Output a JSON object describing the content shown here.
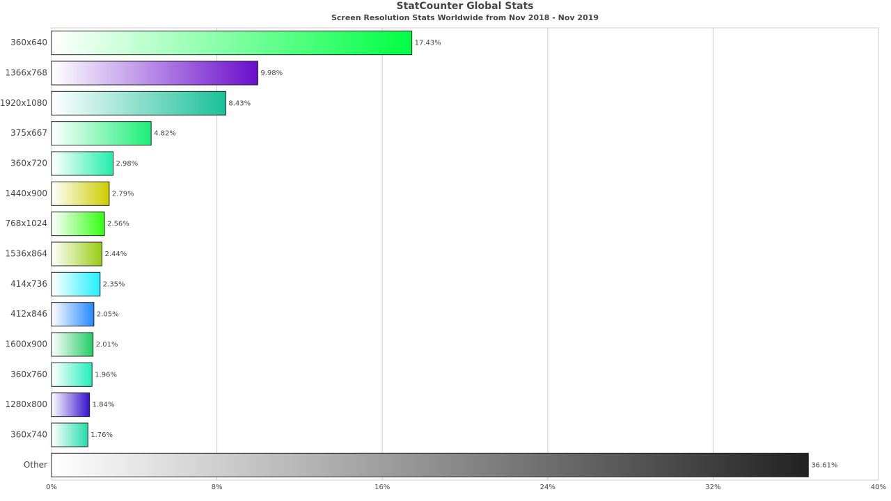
{
  "chart_data": {
    "type": "barh",
    "title": "StatCounter Global Stats",
    "subtitle": "Screen Resolution Stats Worldwide from Nov 2018 - Nov 2019",
    "categories": [
      "360x640",
      "1366x768",
      "1920x1080",
      "375x667",
      "360x720",
      "1440x900",
      "768x1024",
      "1536x864",
      "414x736",
      "412x846",
      "1600x900",
      "360x760",
      "1280x800",
      "360x740",
      "Other"
    ],
    "values": [
      17.43,
      9.98,
      8.43,
      4.82,
      2.98,
      2.79,
      2.56,
      2.44,
      2.35,
      2.05,
      2.01,
      1.96,
      1.84,
      1.76,
      36.61
    ],
    "value_labels": [
      "17.43%",
      "9.98%",
      "8.43%",
      "4.82%",
      "2.98%",
      "2.79%",
      "2.56%",
      "2.44%",
      "2.35%",
      "2.05%",
      "2.01%",
      "1.96%",
      "1.84%",
      "1.76%",
      "36.61%"
    ],
    "colors": [
      "#00ff44",
      "#6a0dcc",
      "#1abf99",
      "#1aee77",
      "#22eeaa",
      "#cccc00",
      "#33ff11",
      "#99cc11",
      "#22eeff",
      "#2288ff",
      "#22cc66",
      "#22eebb",
      "#3311cc",
      "#22ddaa",
      "#222222"
    ],
    "xlim": [
      0,
      40
    ],
    "xticks": [
      {
        "value": 0,
        "label": "0%"
      },
      {
        "value": 8,
        "label": "8%"
      },
      {
        "value": 16,
        "label": "16%"
      },
      {
        "value": 24,
        "label": "24%"
      },
      {
        "value": 32,
        "label": "32%"
      },
      {
        "value": 40,
        "label": "40%"
      }
    ],
    "grid": true
  }
}
